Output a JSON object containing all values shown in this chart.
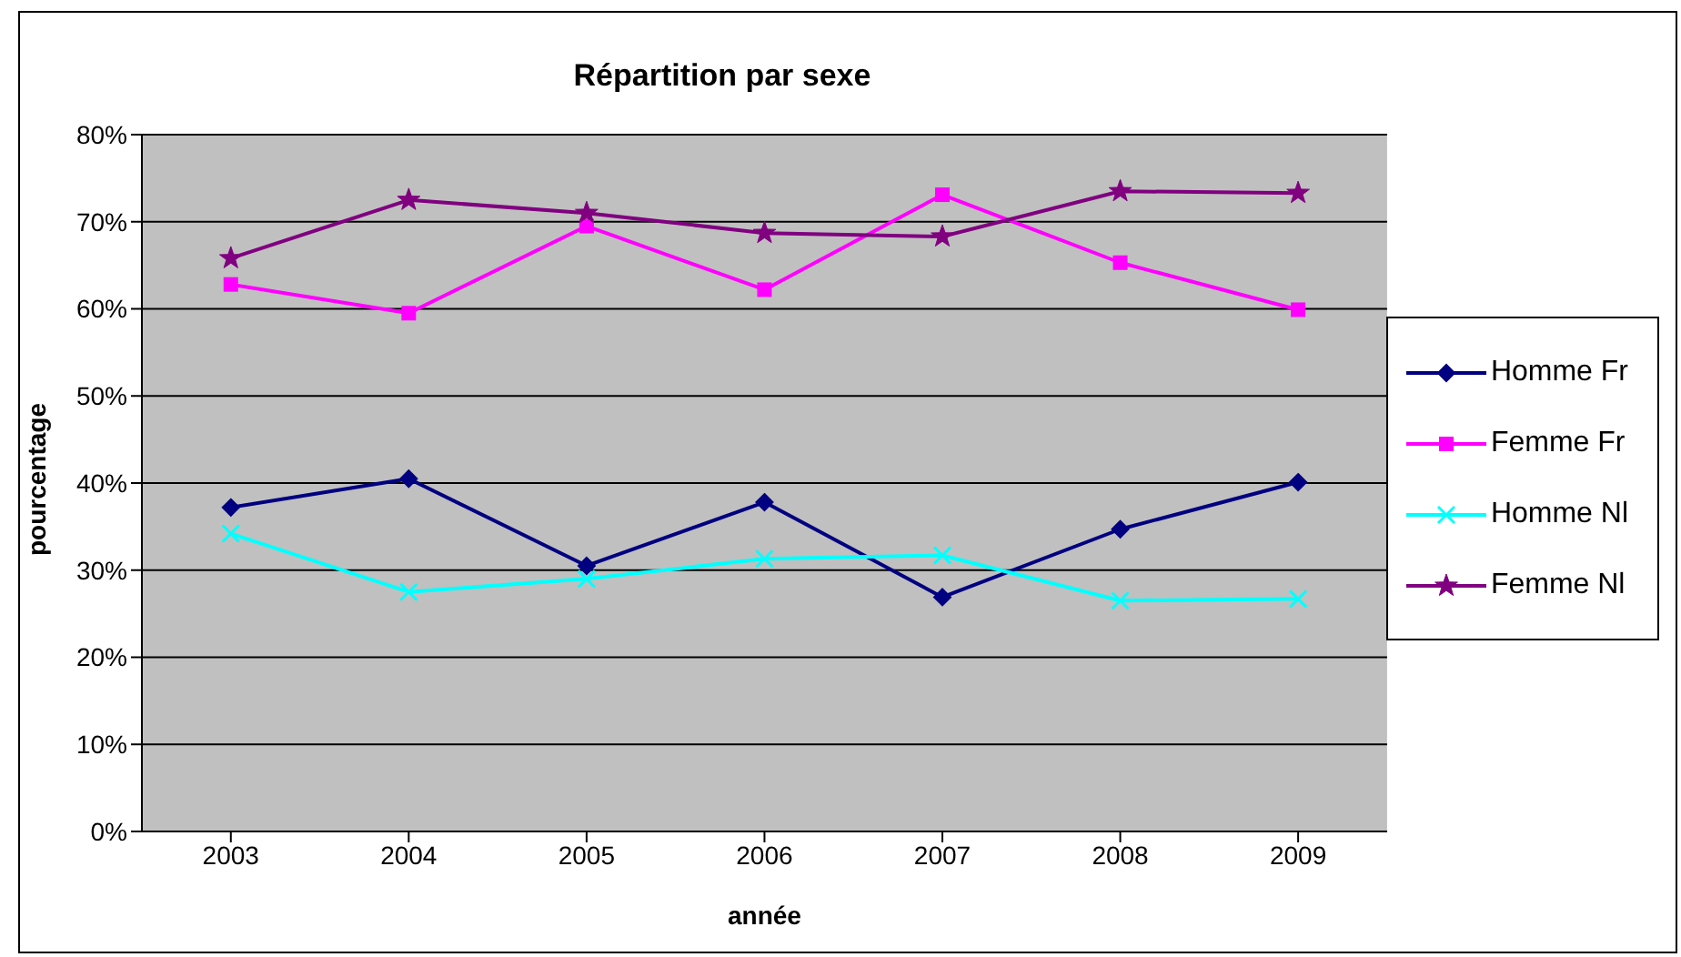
{
  "chart_data": {
    "type": "line",
    "title": "Répartition par sexe",
    "xlabel": "année",
    "ylabel": "pourcentage",
    "categories": [
      "2003",
      "2004",
      "2005",
      "2006",
      "2007",
      "2008",
      "2009"
    ],
    "series": [
      {
        "name": "Homme Fr",
        "color": "#000080",
        "marker": "diamond",
        "values": [
          37.2,
          40.5,
          30.5,
          37.8,
          26.9,
          34.7,
          40.1
        ]
      },
      {
        "name": "Femme Fr",
        "color": "#ff00ff",
        "marker": "square",
        "values": [
          62.8,
          59.5,
          69.5,
          62.2,
          73.1,
          65.3,
          59.9
        ]
      },
      {
        "name": "Homme Nl",
        "color": "#00ffff",
        "marker": "cross",
        "values": [
          34.2,
          27.5,
          29.0,
          31.3,
          31.7,
          26.5,
          26.7
        ]
      },
      {
        "name": "Femme Nl",
        "color": "#800080",
        "marker": "star",
        "values": [
          65.8,
          72.5,
          71.0,
          68.7,
          68.3,
          73.5,
          73.3
        ]
      }
    ],
    "ylim": [
      0,
      80
    ],
    "yticks": [
      {
        "value": 0,
        "label": "0%"
      },
      {
        "value": 10,
        "label": "10%"
      },
      {
        "value": 20,
        "label": "20%"
      },
      {
        "value": 30,
        "label": "30%"
      },
      {
        "value": 40,
        "label": "40%"
      },
      {
        "value": 50,
        "label": "50%"
      },
      {
        "value": 60,
        "label": "60%"
      },
      {
        "value": 70,
        "label": "70%"
      },
      {
        "value": 80,
        "label": "80%"
      }
    ],
    "grid": "y",
    "legend": "right"
  }
}
